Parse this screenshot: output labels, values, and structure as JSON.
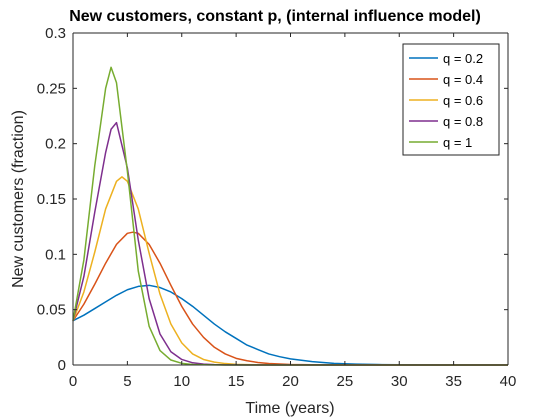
{
  "chart_data": {
    "type": "line",
    "title": "New customers, constant p,  (internal influence model)",
    "xlabel": "Time (years)",
    "ylabel": "New customers (fraction)",
    "xlim": [
      0,
      40
    ],
    "ylim": [
      0,
      0.3
    ],
    "xticks": [
      "0",
      "5",
      "10",
      "15",
      "20",
      "25",
      "30",
      "35",
      "40"
    ],
    "yticks": [
      "0",
      "0.05",
      "0.1",
      "0.15",
      "0.2",
      "0.25",
      "0.3"
    ],
    "grid": false,
    "legend_position": "top-right",
    "series": [
      {
        "name": "q = 0.2",
        "color": "#0072BD",
        "x": [
          0,
          1,
          2,
          3,
          4,
          5,
          6,
          7,
          8,
          9,
          10,
          11,
          12,
          13,
          14,
          15,
          16,
          17,
          18,
          19,
          20,
          22,
          24,
          26,
          28,
          30,
          32,
          34,
          36,
          38,
          40
        ],
        "y": [
          0.04,
          0.045,
          0.051,
          0.057,
          0.063,
          0.068,
          0.071,
          0.072,
          0.07,
          0.066,
          0.06,
          0.053,
          0.045,
          0.037,
          0.03,
          0.024,
          0.018,
          0.014,
          0.01,
          0.0075,
          0.0055,
          0.003,
          0.0015,
          0.0008,
          0.0004,
          0.0002,
          0.0001,
          5e-05,
          0,
          0,
          0
        ]
      },
      {
        "name": "q = 0.4",
        "color": "#D95319",
        "x": [
          0,
          1,
          2,
          3,
          4,
          5,
          5.5,
          6,
          7,
          8,
          9,
          10,
          11,
          12,
          13,
          14,
          15,
          16,
          17,
          18,
          20,
          22,
          24,
          28,
          32,
          36,
          40
        ],
        "y": [
          0.04,
          0.055,
          0.073,
          0.092,
          0.109,
          0.119,
          0.12,
          0.119,
          0.109,
          0.092,
          0.072,
          0.053,
          0.037,
          0.025,
          0.016,
          0.01,
          0.006,
          0.0038,
          0.0023,
          0.0014,
          0.0005,
          0.0002,
          0.0001,
          0,
          0,
          0,
          0
        ]
      },
      {
        "name": "q = 0.6",
        "color": "#EDB120",
        "x": [
          0,
          1,
          2,
          3,
          4,
          4.5,
          5,
          6,
          7,
          8,
          9,
          10,
          11,
          12,
          13,
          14,
          15,
          16,
          18,
          20,
          25,
          30,
          35,
          40
        ],
        "y": [
          0.04,
          0.066,
          0.102,
          0.141,
          0.166,
          0.17,
          0.166,
          0.141,
          0.101,
          0.064,
          0.037,
          0.02,
          0.01,
          0.005,
          0.0026,
          0.0013,
          0.0006,
          0.0003,
          0.0001,
          0,
          0,
          0,
          0,
          0
        ]
      },
      {
        "name": "q = 0.8",
        "color": "#7E2F8E",
        "x": [
          0,
          1,
          2,
          3,
          3.5,
          4,
          5,
          6,
          7,
          8,
          9,
          10,
          11,
          12,
          13,
          14,
          16,
          20,
          25,
          30,
          35,
          40
        ],
        "y": [
          0.04,
          0.08,
          0.138,
          0.192,
          0.213,
          0.219,
          0.178,
          0.113,
          0.06,
          0.028,
          0.012,
          0.005,
          0.002,
          0.0008,
          0.0003,
          0.0001,
          0,
          0,
          0,
          0,
          0,
          0
        ]
      },
      {
        "name": "q = 1",
        "color": "#77AC30",
        "x": [
          0,
          1,
          2,
          3,
          3.5,
          4,
          5,
          6,
          7,
          8,
          9,
          10,
          11,
          12,
          14,
          20,
          25,
          30,
          35,
          40
        ],
        "y": [
          0.04,
          0.095,
          0.18,
          0.25,
          0.269,
          0.255,
          0.175,
          0.085,
          0.035,
          0.013,
          0.0045,
          0.0015,
          0.0005,
          0.0002,
          0,
          0,
          0,
          0,
          0,
          0
        ]
      }
    ]
  }
}
